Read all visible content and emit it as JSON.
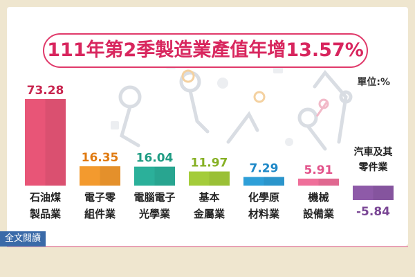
{
  "title": "111年第2季製造業產值年增13.57%",
  "unit": "單位:%",
  "footer_link": "全文閱讀",
  "chart_data": {
    "type": "bar",
    "categories": [
      [
        "石油煤",
        "製品業"
      ],
      [
        "電子零",
        "組件業"
      ],
      [
        "電腦電子",
        "光學業"
      ],
      [
        "基本",
        "金屬業"
      ],
      [
        "化學原",
        "材料業"
      ],
      [
        "機械",
        "設備業"
      ],
      [
        "汽車及其",
        "零件業"
      ]
    ],
    "values": [
      73.28,
      16.35,
      16.04,
      11.97,
      7.29,
      5.91,
      -5.84
    ],
    "value_labels": [
      "73.28",
      "16.35",
      "16.04",
      "11.97",
      "7.29",
      "5.91",
      "-5.84"
    ],
    "colors": [
      "#e85577",
      "#f39a2e",
      "#2bb09a",
      "#a4cc3a",
      "#2e9fd8",
      "#ef6f9a",
      "#8e5aa8"
    ],
    "label_colors": [
      "#c8254f",
      "#e07a10",
      "#1f9c83",
      "#86b024",
      "#1e88c7",
      "#e2528a",
      "#7a4795"
    ],
    "ylim": [
      -5.84,
      73.28
    ]
  }
}
